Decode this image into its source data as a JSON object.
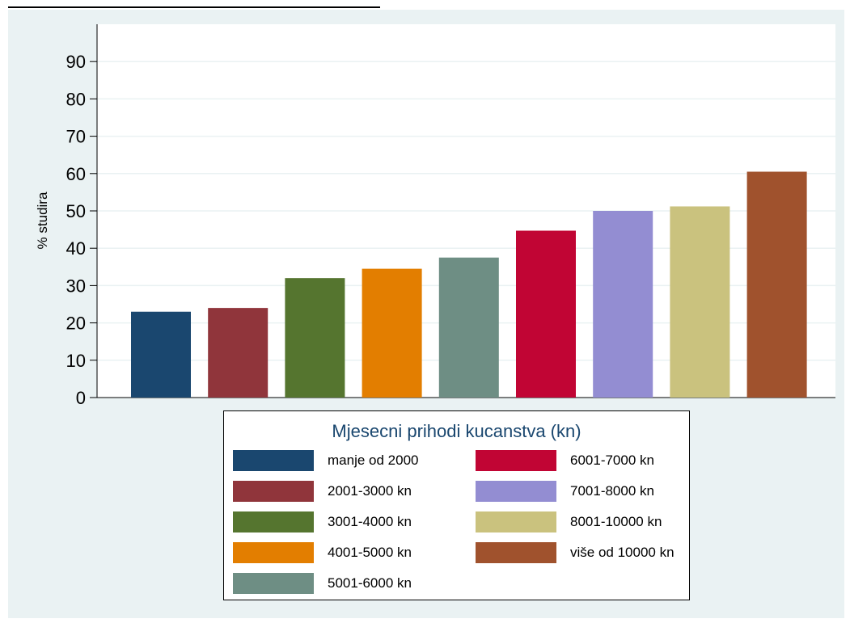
{
  "chart_data": {
    "type": "bar",
    "title": "",
    "xlabel": "",
    "ylabel": "% studira",
    "ylim": [
      0,
      100
    ],
    "yticks": [
      0,
      10,
      20,
      30,
      40,
      50,
      60,
      70,
      80,
      90
    ],
    "grid": true,
    "categories": [
      "manje od 2000",
      "2001-3000 kn",
      "3001-4000 kn",
      "4001-5000 kn",
      "5001-6000 kn",
      "6001-7000 kn",
      "7001-8000 kn",
      "8001-10000 kn",
      "više od 10000 kn"
    ],
    "values": [
      23,
      24,
      32,
      34.5,
      37.5,
      44.7,
      50,
      51.2,
      60.5
    ],
    "colors": [
      "#1a476f",
      "#90353b",
      "#55752f",
      "#e37e00",
      "#6e8e84",
      "#c10534",
      "#938dd2",
      "#cac27e",
      "#a0522d"
    ],
    "legend": {
      "title": "Mjesecni prihodi kucanstva (kn)",
      "placement": "bottom"
    }
  }
}
